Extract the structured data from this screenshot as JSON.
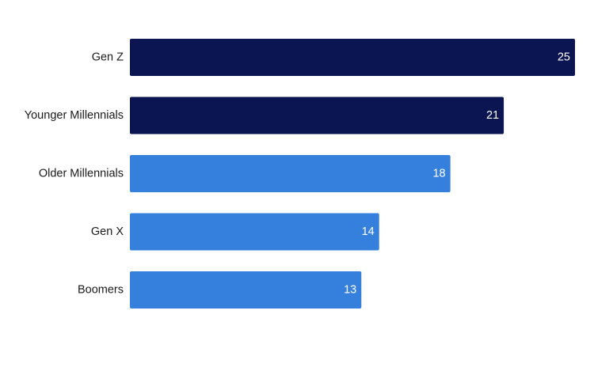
{
  "chart_data": {
    "type": "bar",
    "orientation": "horizontal",
    "categories": [
      "Gen Z",
      "Younger Millennials",
      "Older Millennials",
      "Gen X",
      "Boomers"
    ],
    "values": [
      25,
      21,
      18,
      14,
      13
    ],
    "bar_colors": [
      "#0a1551",
      "#0a1551",
      "#3580dc",
      "#3580dc",
      "#3580dc"
    ],
    "title": "",
    "xlabel": "",
    "ylabel": "",
    "xlim": [
      0,
      25
    ],
    "grid": false,
    "legend": "none",
    "data_labels": "inside-end"
  }
}
